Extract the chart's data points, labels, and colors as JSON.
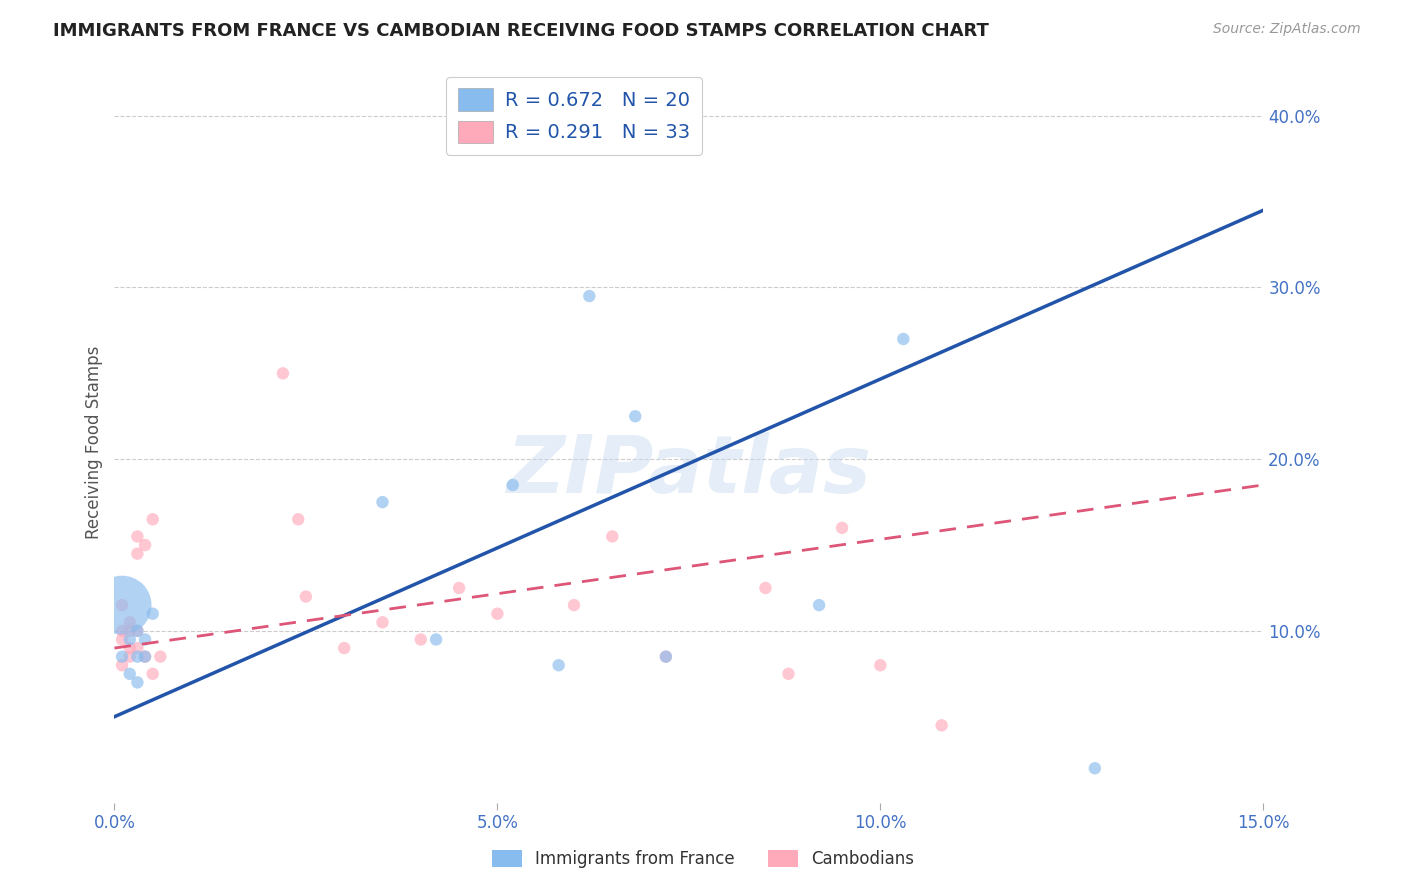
{
  "title": "IMMIGRANTS FROM FRANCE VS CAMBODIAN RECEIVING FOOD STAMPS CORRELATION CHART",
  "source": "Source: ZipAtlas.com",
  "xlabel_color": "#4472c4",
  "ylabel": "Receiving Food Stamps",
  "xlim": [
    0.0,
    0.15
  ],
  "ylim": [
    0.0,
    0.42
  ],
  "xticks": [
    0.0,
    0.05,
    0.1,
    0.15
  ],
  "yticks_right": [
    0.0,
    0.1,
    0.2,
    0.3,
    0.4
  ],
  "ytick_labels_right": [
    "",
    "10.0%",
    "20.0%",
    "30.0%",
    "40.0%"
  ],
  "xtick_labels": [
    "0.0%",
    "5.0%",
    "10.0%",
    "15.0%"
  ],
  "color_blue": "#88bbee",
  "color_pink": "#ffaabb",
  "line_color_blue": "#2255aa",
  "line_color_pink": "#dd5577",
  "watermark": "ZIPatlas",
  "france_x": [
    0.001,
    0.001,
    0.002,
    0.002,
    0.003,
    0.003,
    0.003,
    0.004,
    0.004,
    0.005,
    0.035,
    0.042,
    0.052,
    0.058,
    0.062,
    0.068,
    0.072,
    0.092,
    0.103,
    0.128
  ],
  "france_y": [
    0.115,
    0.085,
    0.095,
    0.075,
    0.1,
    0.085,
    0.07,
    0.085,
    0.095,
    0.11,
    0.175,
    0.095,
    0.185,
    0.08,
    0.295,
    0.225,
    0.085,
    0.115,
    0.27,
    0.02
  ],
  "france_size": [
    1800,
    80,
    80,
    80,
    80,
    80,
    80,
    80,
    80,
    80,
    80,
    80,
    80,
    80,
    80,
    80,
    80,
    80,
    80,
    80
  ],
  "cambodian_x": [
    0.001,
    0.001,
    0.001,
    0.001,
    0.002,
    0.002,
    0.002,
    0.002,
    0.003,
    0.003,
    0.003,
    0.003,
    0.004,
    0.004,
    0.005,
    0.005,
    0.006,
    0.022,
    0.024,
    0.025,
    0.03,
    0.035,
    0.04,
    0.045,
    0.05,
    0.06,
    0.065,
    0.072,
    0.085,
    0.088,
    0.095,
    0.1,
    0.108
  ],
  "cambodian_y": [
    0.115,
    0.1,
    0.095,
    0.08,
    0.105,
    0.1,
    0.09,
    0.085,
    0.155,
    0.145,
    0.1,
    0.09,
    0.15,
    0.085,
    0.165,
    0.075,
    0.085,
    0.25,
    0.165,
    0.12,
    0.09,
    0.105,
    0.095,
    0.125,
    0.11,
    0.115,
    0.155,
    0.085,
    0.125,
    0.075,
    0.16,
    0.08,
    0.045
  ],
  "cambodian_size": [
    80,
    80,
    80,
    80,
    80,
    80,
    80,
    80,
    80,
    80,
    80,
    80,
    80,
    80,
    80,
    80,
    80,
    80,
    80,
    80,
    80,
    80,
    80,
    80,
    80,
    80,
    80,
    80,
    80,
    80,
    80,
    80,
    80
  ],
  "france_line_x": [
    0.0,
    0.15
  ],
  "france_line_y": [
    0.05,
    0.345
  ],
  "cambodian_line_x": [
    0.0,
    0.15
  ],
  "cambodian_line_y": [
    0.09,
    0.185
  ]
}
